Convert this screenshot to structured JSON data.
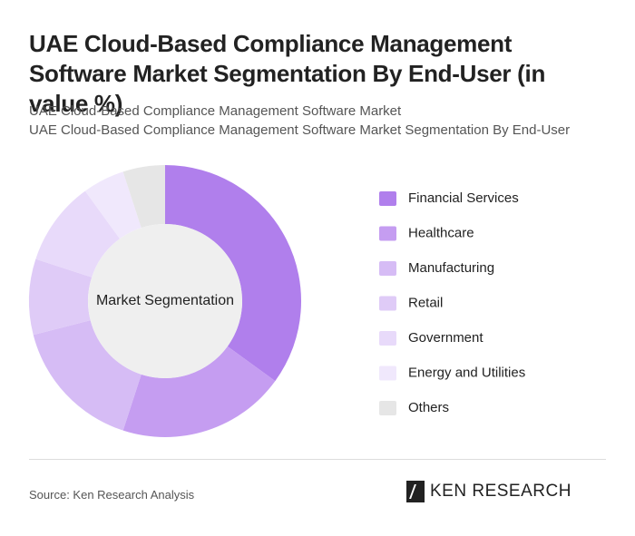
{
  "chart_data": {
    "type": "pie",
    "title": "UAE Cloud-Based Compliance Management Software Market Segmentation By End-User (in value %)",
    "subtitle": [
      "UAE Cloud-Based Compliance Management Software Market",
      "UAE Cloud-Based Compliance Management Software Market Segmentation By End-User"
    ],
    "center_label": "Market Segmentation",
    "categories": [
      "Financial Services",
      "Healthcare",
      "Manufacturing",
      "Retail",
      "Government",
      "Energy and Utilities",
      "Others"
    ],
    "values": [
      35,
      20,
      16,
      9,
      10,
      5,
      5
    ],
    "colors": [
      "#b07fec",
      "#c59df1",
      "#d6bcf5",
      "#dfcbf7",
      "#e8dafa",
      "#f0e8fc",
      "#e6e6e6"
    ],
    "source": "Source: Ken Research Analysis"
  },
  "logo": "KEN RESEARCH"
}
